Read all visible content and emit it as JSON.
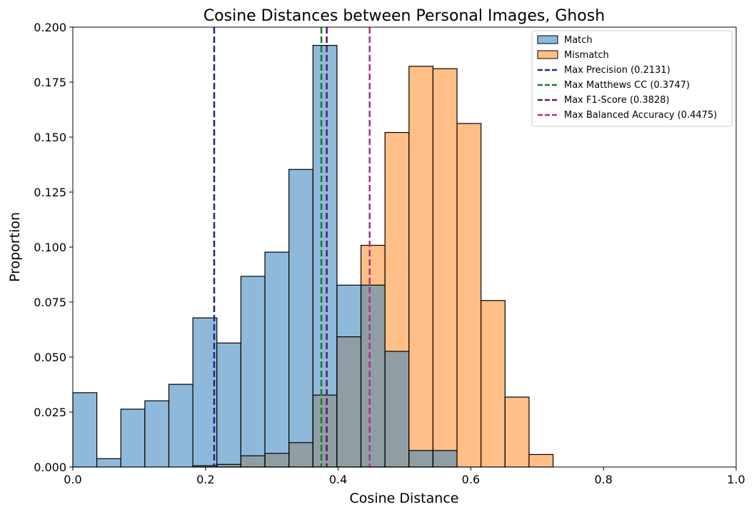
{
  "chart_data": {
    "type": "bar",
    "title": "Cosine Distances between Personal Images, Ghosh",
    "xlabel": "Cosine Distance",
    "ylabel": "Proportion",
    "xlim": [
      0,
      1.0
    ],
    "ylim": [
      0,
      0.2
    ],
    "xticks": [
      "0.0",
      "0.2",
      "0.4",
      "0.6",
      "0.8",
      "1.0"
    ],
    "xtick_values": [
      0,
      0.2,
      0.4,
      0.6,
      0.8,
      1.0
    ],
    "yticks": [
      "0.000",
      "0.025",
      "0.050",
      "0.075",
      "0.100",
      "0.125",
      "0.150",
      "0.175",
      "0.200"
    ],
    "ytick_values": [
      0,
      0.025,
      0.05,
      0.075,
      0.1,
      0.125,
      0.15,
      0.175,
      0.2
    ],
    "bin_edges": [
      0,
      0.0362,
      0.0724,
      0.1086,
      0.1448,
      0.181,
      0.2172,
      0.2534,
      0.2896,
      0.3258,
      0.362,
      0.3982,
      0.4344,
      0.4706,
      0.5068,
      0.543,
      0.5792,
      0.6154,
      0.6516,
      0.6878,
      0.724
    ],
    "series": [
      {
        "name": "Match",
        "color": "#8fb9da",
        "values": [
          0.0338,
          0.0038,
          0.0263,
          0.0301,
          0.0376,
          0.0678,
          0.0564,
          0.0867,
          0.0977,
          0.1353,
          0.1917,
          0.0827,
          0.0827,
          0.0526,
          0.0075,
          0.0075,
          0,
          0,
          0,
          0
        ]
      },
      {
        "name": "Mismatch",
        "color": "#ffbf86",
        "values": [
          0,
          0,
          0,
          0,
          0,
          0.0006,
          0.0012,
          0.0051,
          0.0062,
          0.0111,
          0.0327,
          0.0592,
          0.1008,
          0.1521,
          0.1822,
          0.1811,
          0.1562,
          0.0757,
          0.0318,
          0.0057
        ]
      }
    ],
    "overlap_color": "#8f9ea4",
    "vlines": [
      {
        "label": "Max Precision (0.2131)",
        "x": 0.2131,
        "color": "#1a2f85"
      },
      {
        "label": "Max Matthews CC (0.3747)",
        "x": 0.3747,
        "color": "#1e7a2a"
      },
      {
        "label": "Max F1-Score (0.3828)",
        "x": 0.3828,
        "color": "#5a1f6e"
      },
      {
        "label": "Max Balanced Accuracy (0.4475)",
        "x": 0.4475,
        "color": "#a8368a"
      }
    ],
    "legend": {
      "position": "top-right"
    },
    "grid": false
  }
}
